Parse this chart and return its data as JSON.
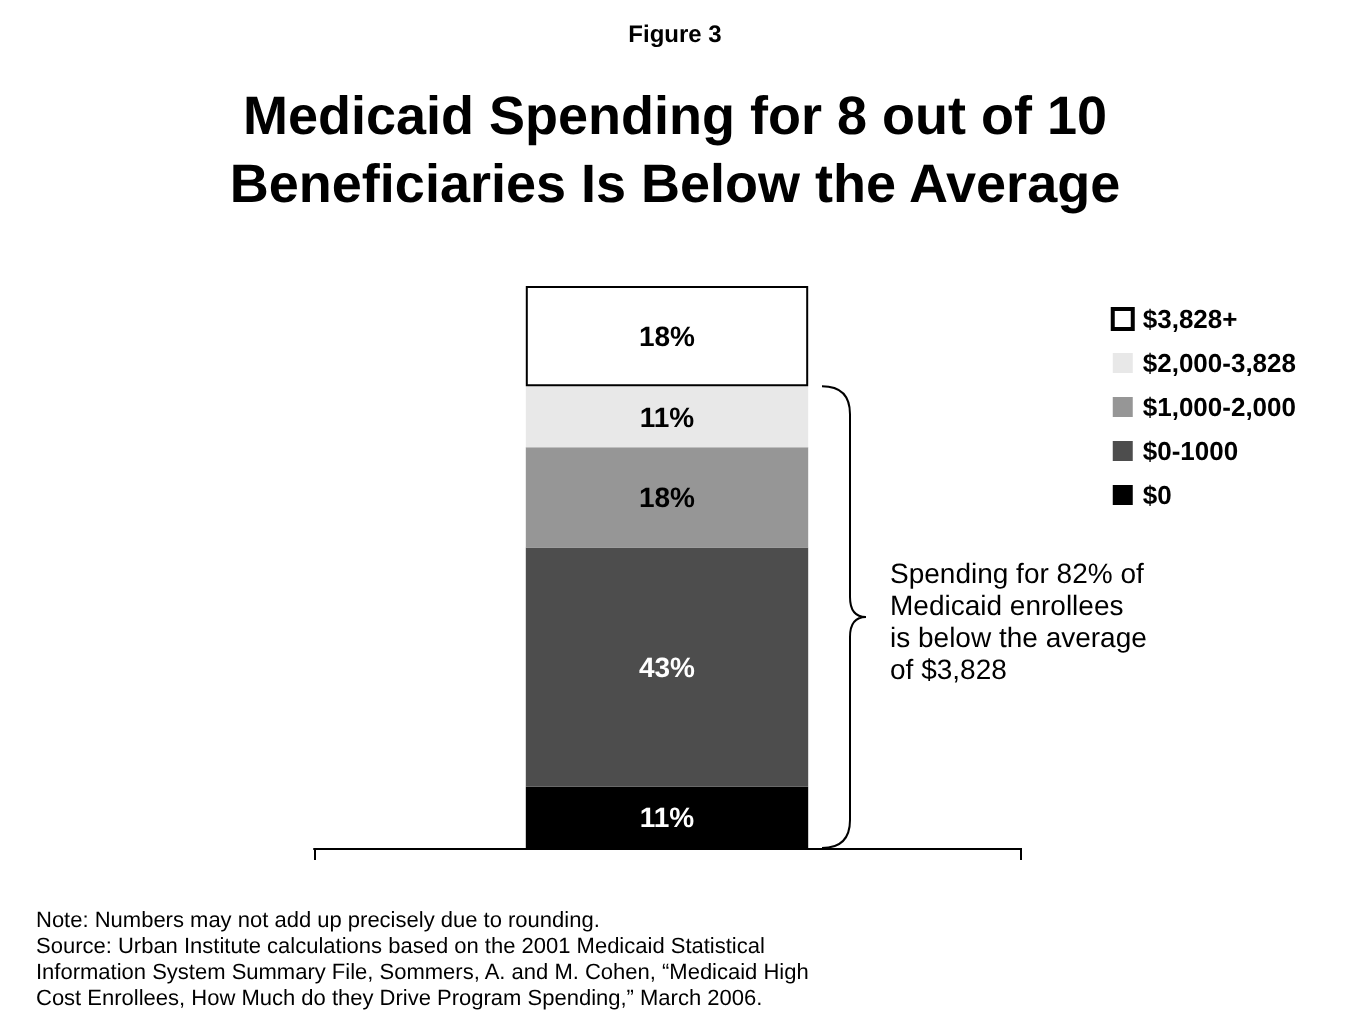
{
  "chart_data": {
    "type": "bar",
    "title": "Figure 3",
    "subtitle": "Medicaid Spending for 8 out of 10\nBeneficiaries Is Below the Average",
    "categories": [
      null
    ],
    "stacked": true,
    "tick_labels": false,
    "grid": false,
    "legend": "top right",
    "series": [
      {
        "name": "$0",
        "color": "#000000",
        "values": [
          11
        ],
        "value_labels": [
          "11%"
        ]
      },
      {
        "name": "$0-1000",
        "color": "#4d4d4d",
        "values": [
          43
        ],
        "value_labels": [
          "43%"
        ]
      },
      {
        "name": "$1,000-2,000",
        "color": "#969696",
        "values": [
          18
        ],
        "value_labels": [
          "18%"
        ]
      },
      {
        "name": "$2,000-3,828",
        "color": "#e8e8e8",
        "values": [
          11
        ],
        "value_labels": [
          "11%"
        ]
      },
      {
        "name": "$3,828+",
        "color": "#ffffff",
        "values": [
          18
        ],
        "value_labels": [
          "18%"
        ]
      }
    ],
    "annotations": [
      "Spending for 82% of\nMedicaid enrollees\nis below the average\nof $3,828",
      "Note: Numbers may not add up precisely due to rounding.\nSource: Urban Institute calculations based on the 2001 Medicaid Statistical\nInformation System Summary File, Sommers, A. and M. Cohen, “Medicaid High\nCost Enrollees, How Much do they Drive Program Spending,” March 2006."
    ]
  }
}
